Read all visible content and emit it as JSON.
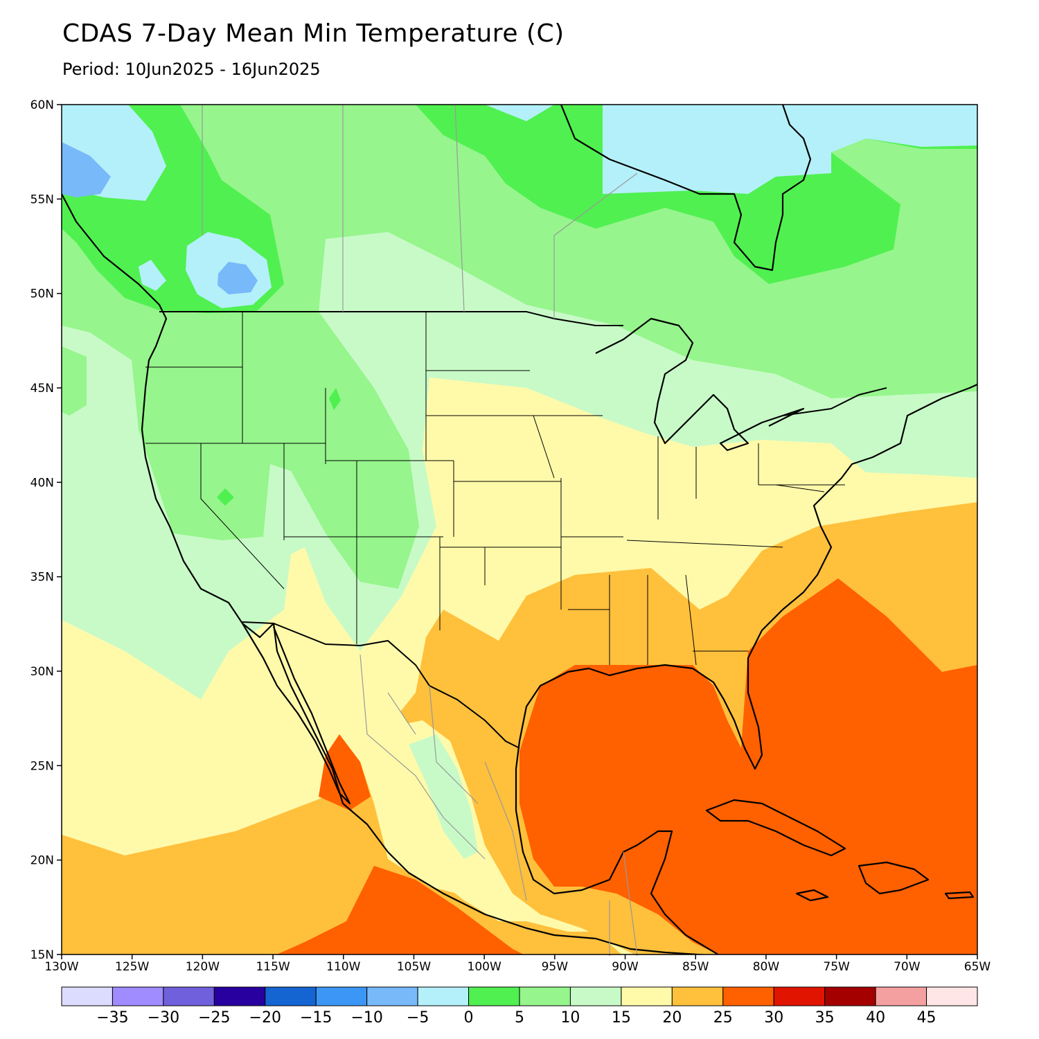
{
  "header": {
    "title": "CDAS 7-Day Mean Min Temperature (C)",
    "subtitle": "Period: 10Jun2025 - 16Jun2025"
  },
  "map": {
    "lat_ticks": [
      "60N",
      "55N",
      "50N",
      "45N",
      "40N",
      "35N",
      "30N",
      "25N",
      "20N",
      "15N"
    ],
    "lon_ticks": [
      "130W",
      "125W",
      "120W",
      "115W",
      "110W",
      "105W",
      "100W",
      "95W",
      "90W",
      "85W",
      "80W",
      "75W",
      "70W",
      "65W"
    ]
  },
  "colorbar": {
    "colors": [
      "#dcdcff",
      "#a08cff",
      "#7060dc",
      "#2800a0",
      "#1464d2",
      "#3c96f5",
      "#78b9fa",
      "#b4f0fa",
      "#50f050",
      "#96f58c",
      "#c8fac8",
      "#fffaaa",
      "#ffc03c",
      "#ff6000",
      "#e11400",
      "#a50000",
      "#f5a0a0",
      "#ffe6e6"
    ],
    "labels": [
      "-35",
      "-30",
      "-25",
      "-20",
      "-15",
      "-10",
      "-5",
      "0",
      "5",
      "10",
      "15",
      "20",
      "25",
      "30",
      "35",
      "40",
      "45"
    ]
  },
  "palette": {
    "c_neg10": "#78b9fa",
    "c_neg5": "#b4f0fa",
    "c_0": "#50f050",
    "c_5": "#96f58c",
    "c_10": "#c8fac8",
    "c_15": "#fffaaa",
    "c_20": "#ffc03c",
    "c_25": "#ff6000"
  }
}
